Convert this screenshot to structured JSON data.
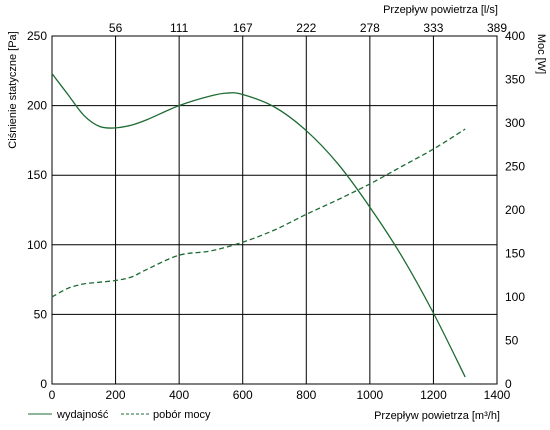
{
  "chart_data": {
    "type": "line",
    "xlabel_bottom": "Przepływ powietrza [m³/h]",
    "xlabel_top": "Przepływ powietrza [l/s]",
    "ylabel_left": "Ciśnienie statyczne [Pa]",
    "ylabel_right": "Moc [W]",
    "xlim": [
      0,
      1400
    ],
    "ylim_left": [
      0,
      250
    ],
    "ylim_right": [
      0,
      400
    ],
    "x_ticks": [
      "0",
      "200",
      "400",
      "600",
      "800",
      "1000",
      "1200",
      "1400"
    ],
    "x_ticks_top": [
      "56",
      "111",
      "167",
      "222",
      "278",
      "333",
      "389"
    ],
    "y_ticks_left": [
      "0",
      "50",
      "100",
      "150",
      "200",
      "250"
    ],
    "y_ticks_right": [
      "0",
      "50",
      "100",
      "150",
      "200",
      "250",
      "300",
      "350",
      "400"
    ],
    "grid": true,
    "legend_position": "bottom-left",
    "line_color": "#1e6b34",
    "series": [
      {
        "name": "wydajność",
        "axis": "left",
        "style": "solid",
        "x": [
          0,
          50,
          100,
          150,
          200,
          250,
          300,
          400,
          500,
          550,
          600,
          700,
          800,
          900,
          1000,
          1100,
          1200,
          1300
        ],
        "y": [
          223,
          208,
          193,
          185,
          184,
          186,
          190,
          200,
          207,
          209,
          208,
          199,
          182,
          158,
          127,
          92,
          51,
          5
        ]
      },
      {
        "name": "pobór mocy",
        "axis": "right",
        "style": "dashed",
        "x": [
          0,
          50,
          100,
          150,
          200,
          250,
          300,
          400,
          500,
          600,
          700,
          800,
          900,
          1000,
          1100,
          1200,
          1300
        ],
        "y": [
          100,
          110,
          115,
          117,
          119,
          123,
          132,
          148,
          153,
          163,
          177,
          195,
          212,
          230,
          250,
          270,
          293
        ]
      }
    ]
  }
}
